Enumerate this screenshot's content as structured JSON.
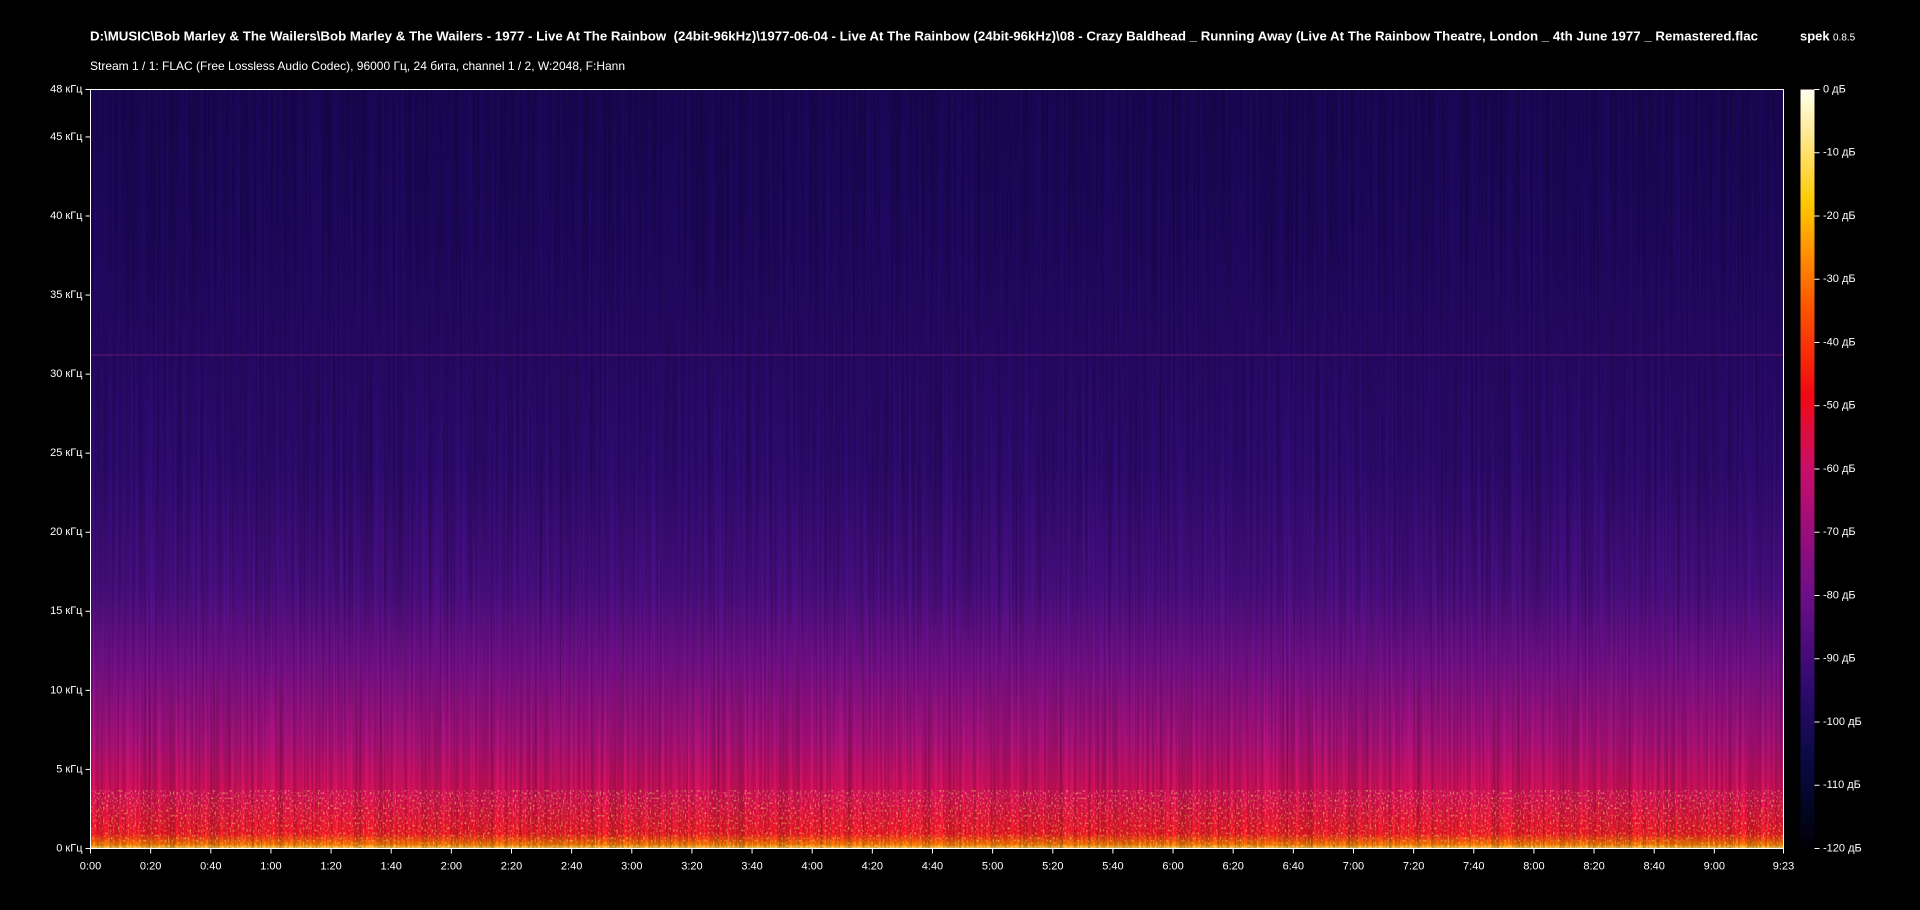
{
  "header": {
    "title": "D:\\MUSIC\\Bob Marley & The Wailers\\Bob Marley & The Wailers - 1977 - Live At The Rainbow  (24bit-96kHz)\\1977-06-04 - Live At The Rainbow (24bit-96kHz)\\08 - Crazy Baldhead _ Running Away (Live At The Rainbow Theatre, London _ 4th June 1977 _ Remastered.flac",
    "app": "spek",
    "version": "0.8.5",
    "stream_info": "Stream 1 / 1: FLAC (Free Lossless Audio Codec), 96000 Гц, 24 бита, channel 1 / 2, W:2048, F:Hann"
  },
  "frequency_axis": {
    "range": [
      0,
      48
    ],
    "ticks": [
      {
        "value": 0,
        "label": "0 кГц"
      },
      {
        "value": 5,
        "label": "5 кГц"
      },
      {
        "value": 10,
        "label": "10 кГц"
      },
      {
        "value": 15,
        "label": "15 кГц"
      },
      {
        "value": 20,
        "label": "20 кГц"
      },
      {
        "value": 25,
        "label": "25 кГц"
      },
      {
        "value": 30,
        "label": "30 кГц"
      },
      {
        "value": 35,
        "label": "35 кГц"
      },
      {
        "value": 40,
        "label": "40 кГц"
      },
      {
        "value": 45,
        "label": "45 кГц"
      },
      {
        "value": 48,
        "label": "48 кГц"
      }
    ]
  },
  "time_axis": {
    "range": [
      0,
      563
    ],
    "ticks": [
      {
        "value": 0,
        "label": "0:00"
      },
      {
        "value": 20,
        "label": "0:20"
      },
      {
        "value": 40,
        "label": "0:40"
      },
      {
        "value": 60,
        "label": "1:00"
      },
      {
        "value": 80,
        "label": "1:20"
      },
      {
        "value": 100,
        "label": "1:40"
      },
      {
        "value": 120,
        "label": "2:00"
      },
      {
        "value": 140,
        "label": "2:20"
      },
      {
        "value": 160,
        "label": "2:40"
      },
      {
        "value": 180,
        "label": "3:00"
      },
      {
        "value": 200,
        "label": "3:20"
      },
      {
        "value": 220,
        "label": "3:40"
      },
      {
        "value": 240,
        "label": "4:00"
      },
      {
        "value": 260,
        "label": "4:20"
      },
      {
        "value": 280,
        "label": "4:40"
      },
      {
        "value": 300,
        "label": "5:00"
      },
      {
        "value": 320,
        "label": "5:20"
      },
      {
        "value": 340,
        "label": "5:40"
      },
      {
        "value": 360,
        "label": "6:00"
      },
      {
        "value": 380,
        "label": "6:20"
      },
      {
        "value": 400,
        "label": "6:40"
      },
      {
        "value": 420,
        "label": "7:00"
      },
      {
        "value": 440,
        "label": "7:20"
      },
      {
        "value": 460,
        "label": "7:40"
      },
      {
        "value": 480,
        "label": "8:00"
      },
      {
        "value": 500,
        "label": "8:20"
      },
      {
        "value": 520,
        "label": "8:40"
      },
      {
        "value": 540,
        "label": "9:00"
      },
      {
        "value": 563,
        "label": "9:23"
      }
    ]
  },
  "level_axis": {
    "range": [
      -120,
      0
    ],
    "ticks": [
      {
        "value": 0,
        "label": "0 дБ"
      },
      {
        "value": -10,
        "label": "-10 дБ"
      },
      {
        "value": -20,
        "label": "-20 дБ"
      },
      {
        "value": -30,
        "label": "-30 дБ"
      },
      {
        "value": -40,
        "label": "-40 дБ"
      },
      {
        "value": -50,
        "label": "-50 дБ"
      },
      {
        "value": -60,
        "label": "-60 дБ"
      },
      {
        "value": -70,
        "label": "-70 дБ"
      },
      {
        "value": -80,
        "label": "-80 дБ"
      },
      {
        "value": -90,
        "label": "-90 дБ"
      },
      {
        "value": -100,
        "label": "-100 дБ"
      },
      {
        "value": -110,
        "label": "-110 дБ"
      },
      {
        "value": -120,
        "label": "-120 дБ"
      }
    ]
  }
}
